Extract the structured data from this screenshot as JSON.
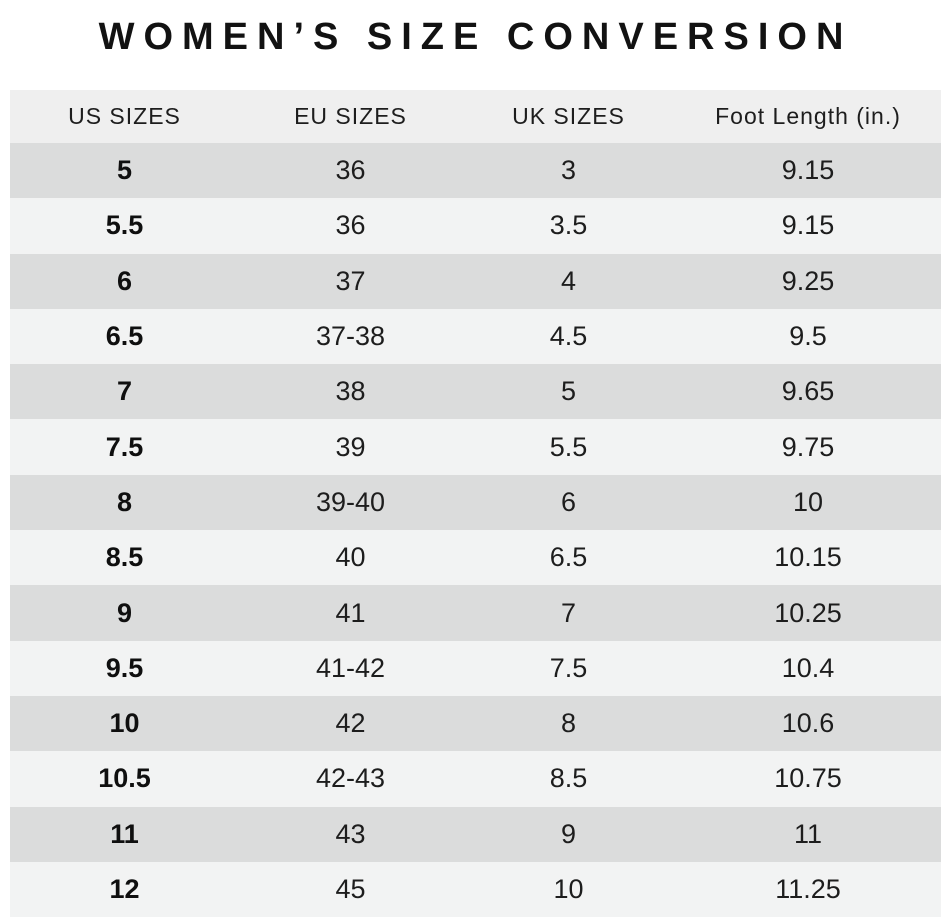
{
  "title": "WOMEN’S SIZE CONVERSION",
  "colors": {
    "background": "#ffffff",
    "header_bg": "#efefef",
    "row_dark": "#dbdcdc",
    "row_light": "#f2f3f3",
    "text": "#1d1d1d"
  },
  "chart_data": {
    "type": "table",
    "title": "WOMEN’S SIZE CONVERSION",
    "columns": [
      "US SIZES",
      "EU SIZES",
      "UK SIZES",
      "Foot Length (in.)"
    ],
    "rows": [
      [
        "5",
        "36",
        "3",
        "9.15"
      ],
      [
        "5.5",
        "36",
        "3.5",
        "9.15"
      ],
      [
        "6",
        "37",
        "4",
        "9.25"
      ],
      [
        "6.5",
        "37-38",
        "4.5",
        "9.5"
      ],
      [
        "7",
        "38",
        "5",
        "9.65"
      ],
      [
        "7.5",
        "39",
        "5.5",
        "9.75"
      ],
      [
        "8",
        "39-40",
        "6",
        "10"
      ],
      [
        "8.5",
        "40",
        "6.5",
        "10.15"
      ],
      [
        "9",
        "41",
        "7",
        "10.25"
      ],
      [
        "9.5",
        "41-42",
        "7.5",
        "10.4"
      ],
      [
        "10",
        "42",
        "8",
        "10.6"
      ],
      [
        "10.5",
        "42-43",
        "8.5",
        "10.75"
      ],
      [
        "11",
        "43",
        "9",
        "11"
      ],
      [
        "12",
        "45",
        "10",
        "11.25"
      ]
    ],
    "layout": {
      "striped": true,
      "first_row_shade": "dark",
      "alignment": "center",
      "bold_column": "US SIZES"
    }
  }
}
